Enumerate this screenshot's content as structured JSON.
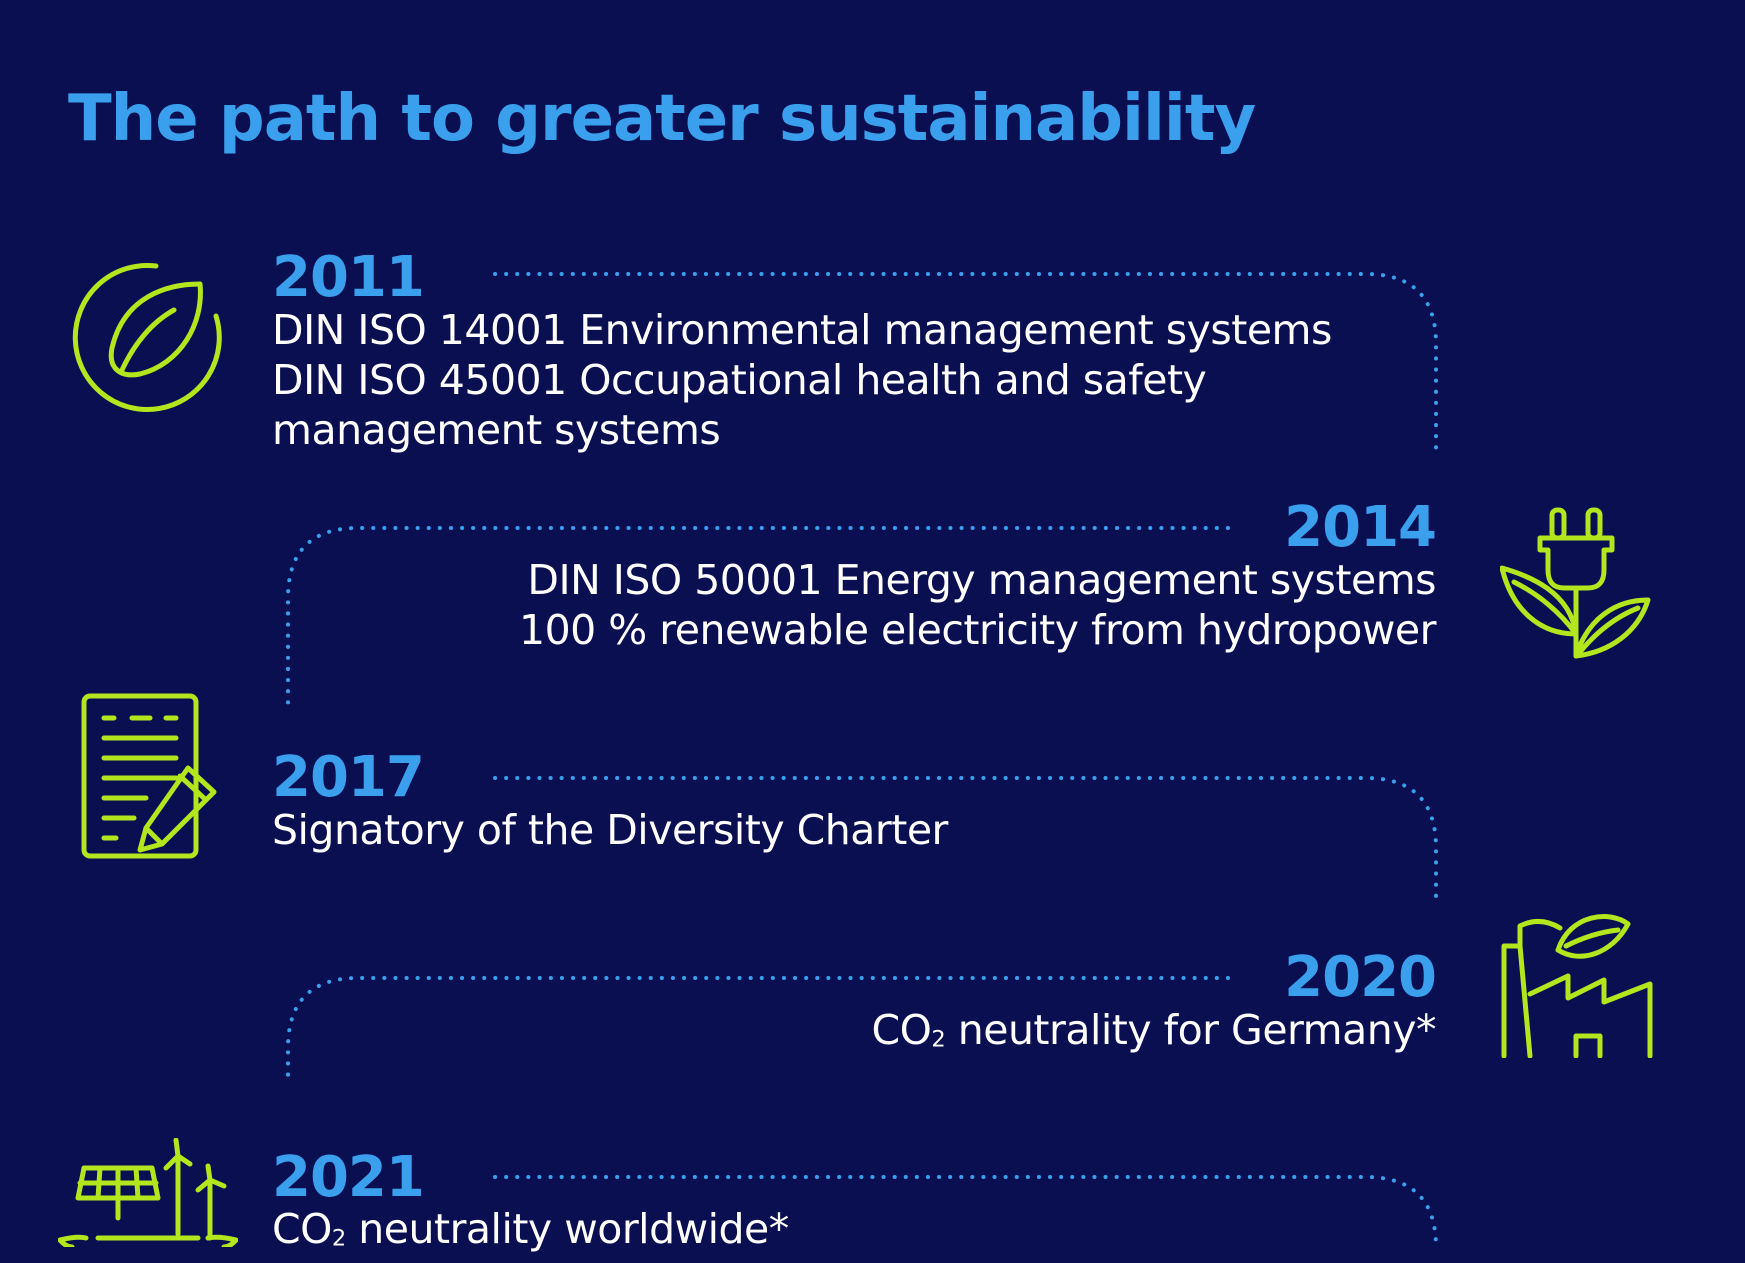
{
  "title": "The path to greater sustainability",
  "accent_color": "#3aa0ee",
  "icon_color": "#b4e61e",
  "background_color": "#0a0f52",
  "milestones": [
    {
      "year": "2011",
      "icon": "leaf-circle-icon",
      "lines": [
        "DIN ISO 14001 Environmental management systems",
        "DIN ISO 45001 Occupational health and safety",
        "management systems"
      ]
    },
    {
      "year": "2014",
      "icon": "plug-plant-icon",
      "lines": [
        "DIN ISO 50001 Energy management systems",
        "100 % renewable electricity from hydropower"
      ]
    },
    {
      "year": "2017",
      "icon": "document-pen-icon",
      "lines": [
        "Signatory of the Diversity Charter"
      ]
    },
    {
      "year": "2020",
      "icon": "factory-leaf-icon",
      "lines": [
        {
          "pre": "CO",
          "sub": "2",
          "post": " neutrality for Germany*"
        }
      ]
    },
    {
      "year": "2021",
      "icon": "renewable-earth-icon",
      "lines": [
        {
          "pre": "CO",
          "sub": "2",
          "post": " neutrality worldwide*"
        }
      ]
    }
  ]
}
